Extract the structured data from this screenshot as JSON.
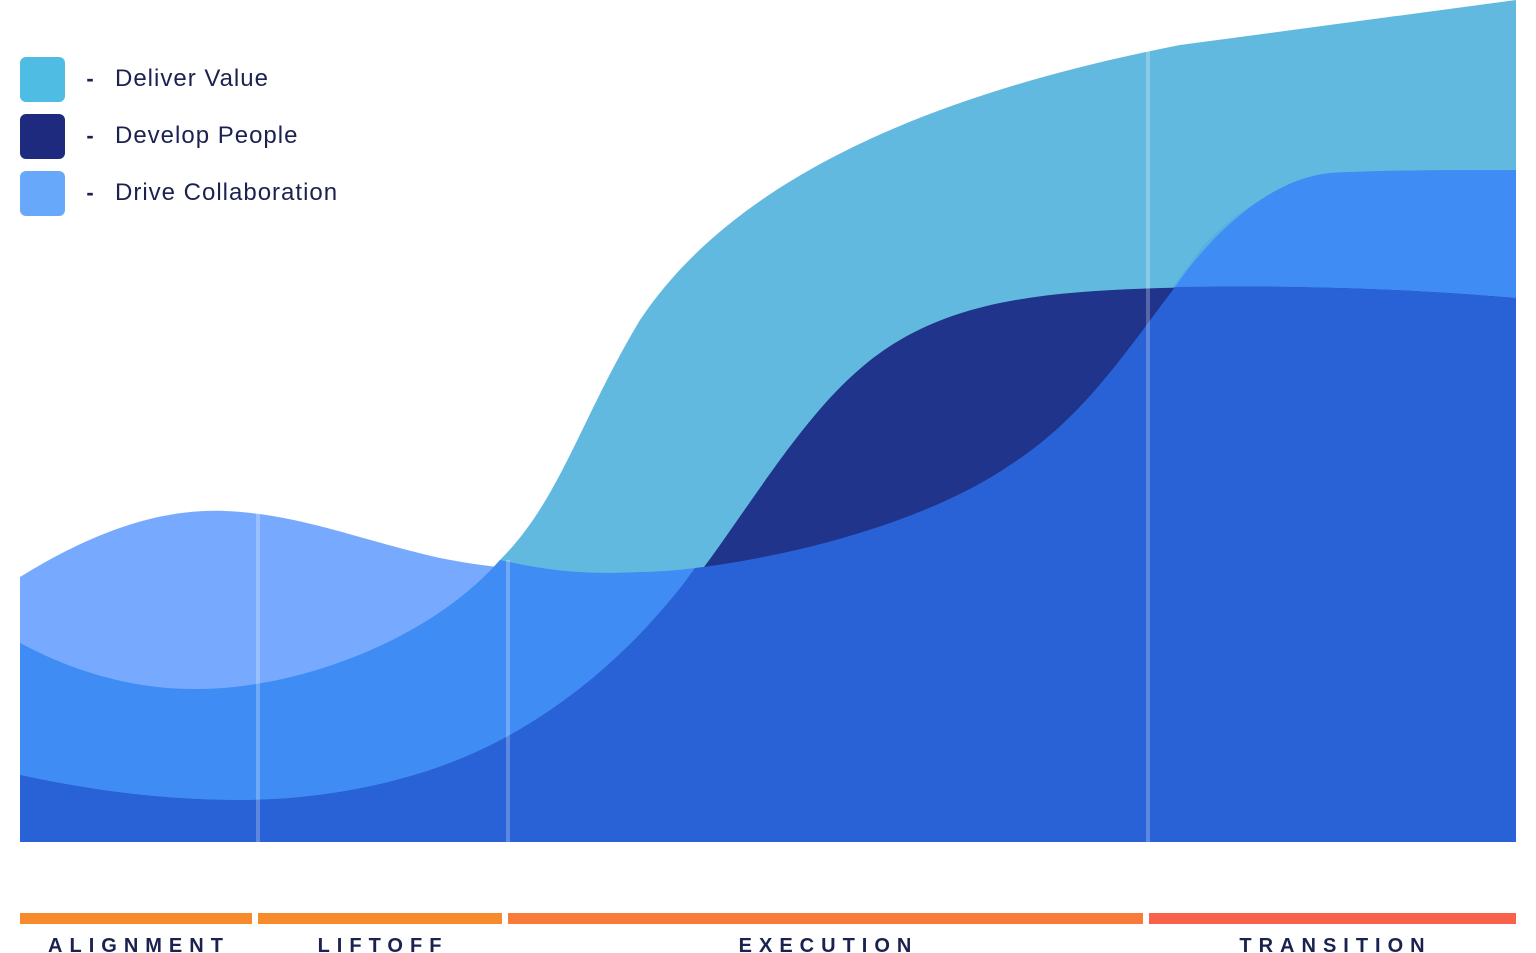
{
  "chart_data": {
    "type": "area",
    "title": "",
    "xlabel": "",
    "ylabel": "",
    "categories": [
      "ALIGNMENT",
      "LIFTOFF",
      "EXECUTION",
      "TRANSITION"
    ],
    "legend_position": "top-left",
    "grid": false,
    "ylim": [
      0,
      100
    ],
    "x": [
      0,
      0.5,
      1,
      1.5,
      2,
      3,
      3.5,
      4,
      4.5,
      5,
      5.5,
      6,
      6.5
    ],
    "series": [
      {
        "name": "Deliver Value",
        "color": "#4fb4e0",
        "values": [
          40,
          38,
          37,
          41,
          44,
          67,
          75,
          80,
          83,
          85,
          86,
          87,
          88
        ]
      },
      {
        "name": "Develop People",
        "color": "#1d2f87",
        "values": [
          8,
          5,
          5,
          8,
          13,
          27,
          45,
          53,
          55,
          55,
          55,
          56,
          57
        ]
      },
      {
        "name": "Drive Collaboration",
        "color": "#5a9cff",
        "values": [
          32,
          37,
          36,
          30,
          29,
          33,
          36,
          45,
          54,
          65,
          68,
          68,
          68
        ]
      }
    ],
    "phases": [
      {
        "label": "ALIGNMENT",
        "color": "#f78b2c"
      },
      {
        "label": "LIFTOFF",
        "color": "#f78b2c"
      },
      {
        "label": "EXECUTION",
        "color": "#fa7a3a"
      },
      {
        "label": "TRANSITION",
        "color": "#f9624a"
      }
    ]
  }
}
